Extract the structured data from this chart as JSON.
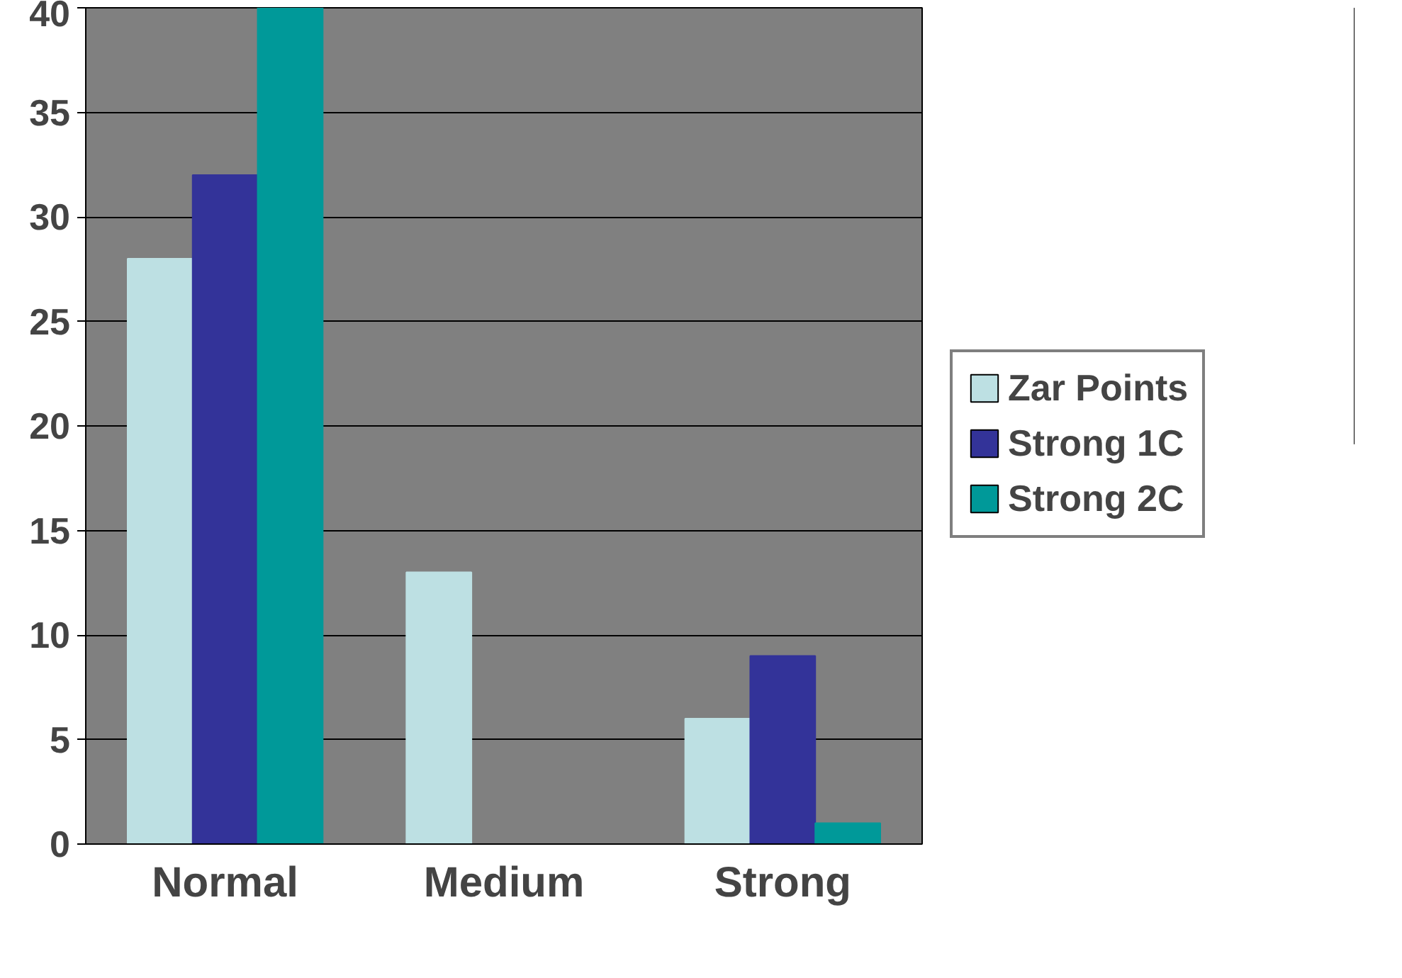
{
  "chart_data": {
    "type": "bar",
    "categories": [
      "Normal",
      "Medium",
      "Strong"
    ],
    "series": [
      {
        "name": "Zar Points",
        "color": "#bde0e3",
        "values": [
          28,
          13,
          6
        ]
      },
      {
        "name": "Strong 1C",
        "color": "#333399",
        "values": [
          32,
          0,
          9
        ]
      },
      {
        "name": "Strong 2C",
        "color": "#009999",
        "values": [
          40,
          0,
          1
        ]
      }
    ],
    "ylim": [
      0,
      40
    ],
    "yticks": [
      0,
      5,
      10,
      15,
      20,
      25,
      30,
      35,
      40
    ],
    "grid": "y",
    "legend": "right"
  }
}
